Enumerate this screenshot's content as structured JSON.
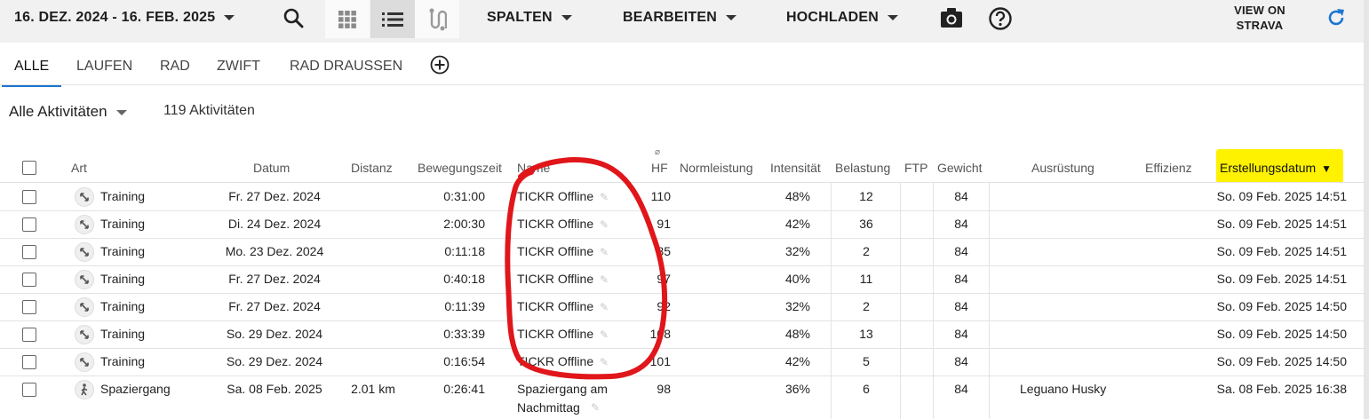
{
  "toolbar": {
    "date_range": "16. DEZ. 2024 - 16. FEB. 2025",
    "spalten": "SPALTEN",
    "bearbeiten": "BEARBEITEN",
    "hochladen": "HOCHLADEN",
    "view_on_strava_1": "VIEW ON",
    "view_on_strava_2": "STRAVA"
  },
  "tabs": [
    "ALLE",
    "LAUFEN",
    "RAD",
    "ZWIFT",
    "RAD DRAUSSEN"
  ],
  "filter": {
    "label": "Alle Aktivitäten",
    "count": "119 Aktivitäten"
  },
  "columns": {
    "art": "Art",
    "datum": "Datum",
    "distanz": "Distanz",
    "bewegungszeit": "Bewegungszeit",
    "name": "Name",
    "hf_prefix": "⌀",
    "hf": "HF",
    "normleistung": "Normleistung",
    "intensitaet": "Intensität",
    "belastung": "Belastung",
    "ftp": "FTP",
    "gewicht": "Gewicht",
    "ausruestung": "Ausrüstung",
    "effizienz": "Effizienz",
    "erstellungsdatum": "Erstellungsdatum"
  },
  "rows": [
    {
      "art": "Training",
      "datum": "Fr. 27 Dez. 2024",
      "distanz": "",
      "zeit": "0:31:00",
      "name": "TICKR Offline",
      "hf": "110",
      "int": "48%",
      "bel": "12",
      "gew": "84",
      "aus": "",
      "erst": "So. 09 Feb. 2025 14:51"
    },
    {
      "art": "Training",
      "datum": "Di. 24 Dez. 2024",
      "distanz": "",
      "zeit": "2:00:30",
      "name": "TICKR Offline",
      "hf": "91",
      "int": "42%",
      "bel": "36",
      "gew": "84",
      "aus": "",
      "erst": "So. 09 Feb. 2025 14:51"
    },
    {
      "art": "Training",
      "datum": "Mo. 23 Dez. 2024",
      "distanz": "",
      "zeit": "0:11:18",
      "name": "TICKR Offline",
      "hf": "85",
      "int": "32%",
      "bel": "2",
      "gew": "84",
      "aus": "",
      "erst": "So. 09 Feb. 2025 14:51"
    },
    {
      "art": "Training",
      "datum": "Fr. 27 Dez. 2024",
      "distanz": "",
      "zeit": "0:40:18",
      "name": "TICKR Offline",
      "hf": "97",
      "int": "40%",
      "bel": "11",
      "gew": "84",
      "aus": "",
      "erst": "So. 09 Feb. 2025 14:51"
    },
    {
      "art": "Training",
      "datum": "Fr. 27 Dez. 2024",
      "distanz": "",
      "zeit": "0:11:39",
      "name": "TICKR Offline",
      "hf": "92",
      "int": "32%",
      "bel": "2",
      "gew": "84",
      "aus": "",
      "erst": "So. 09 Feb. 2025 14:50"
    },
    {
      "art": "Training",
      "datum": "So. 29 Dez. 2024",
      "distanz": "",
      "zeit": "0:33:39",
      "name": "TICKR Offline",
      "hf": "108",
      "int": "48%",
      "bel": "13",
      "gew": "84",
      "aus": "",
      "erst": "So. 09 Feb. 2025 14:50"
    },
    {
      "art": "Training",
      "datum": "So. 29 Dez. 2024",
      "distanz": "",
      "zeit": "0:16:54",
      "name": "TICKR Offline",
      "hf": "101",
      "int": "42%",
      "bel": "5",
      "gew": "84",
      "aus": "",
      "erst": "So. 09 Feb. 2025 14:50"
    },
    {
      "art": "Spaziergang",
      "datum": "Sa. 08 Feb. 2025",
      "distanz": "2.01 km",
      "zeit": "0:26:41",
      "name": "Spaziergang am",
      "name2": "Nachmittag",
      "hf": "98",
      "int": "36%",
      "bel": "6",
      "gew": "84",
      "aus": "Leguano Husky",
      "erst": "Sa. 08 Feb. 2025 16:38"
    }
  ],
  "colors": {
    "accent": "#1976d2",
    "highlight": "#fff200",
    "annotation": "#e0161b"
  }
}
